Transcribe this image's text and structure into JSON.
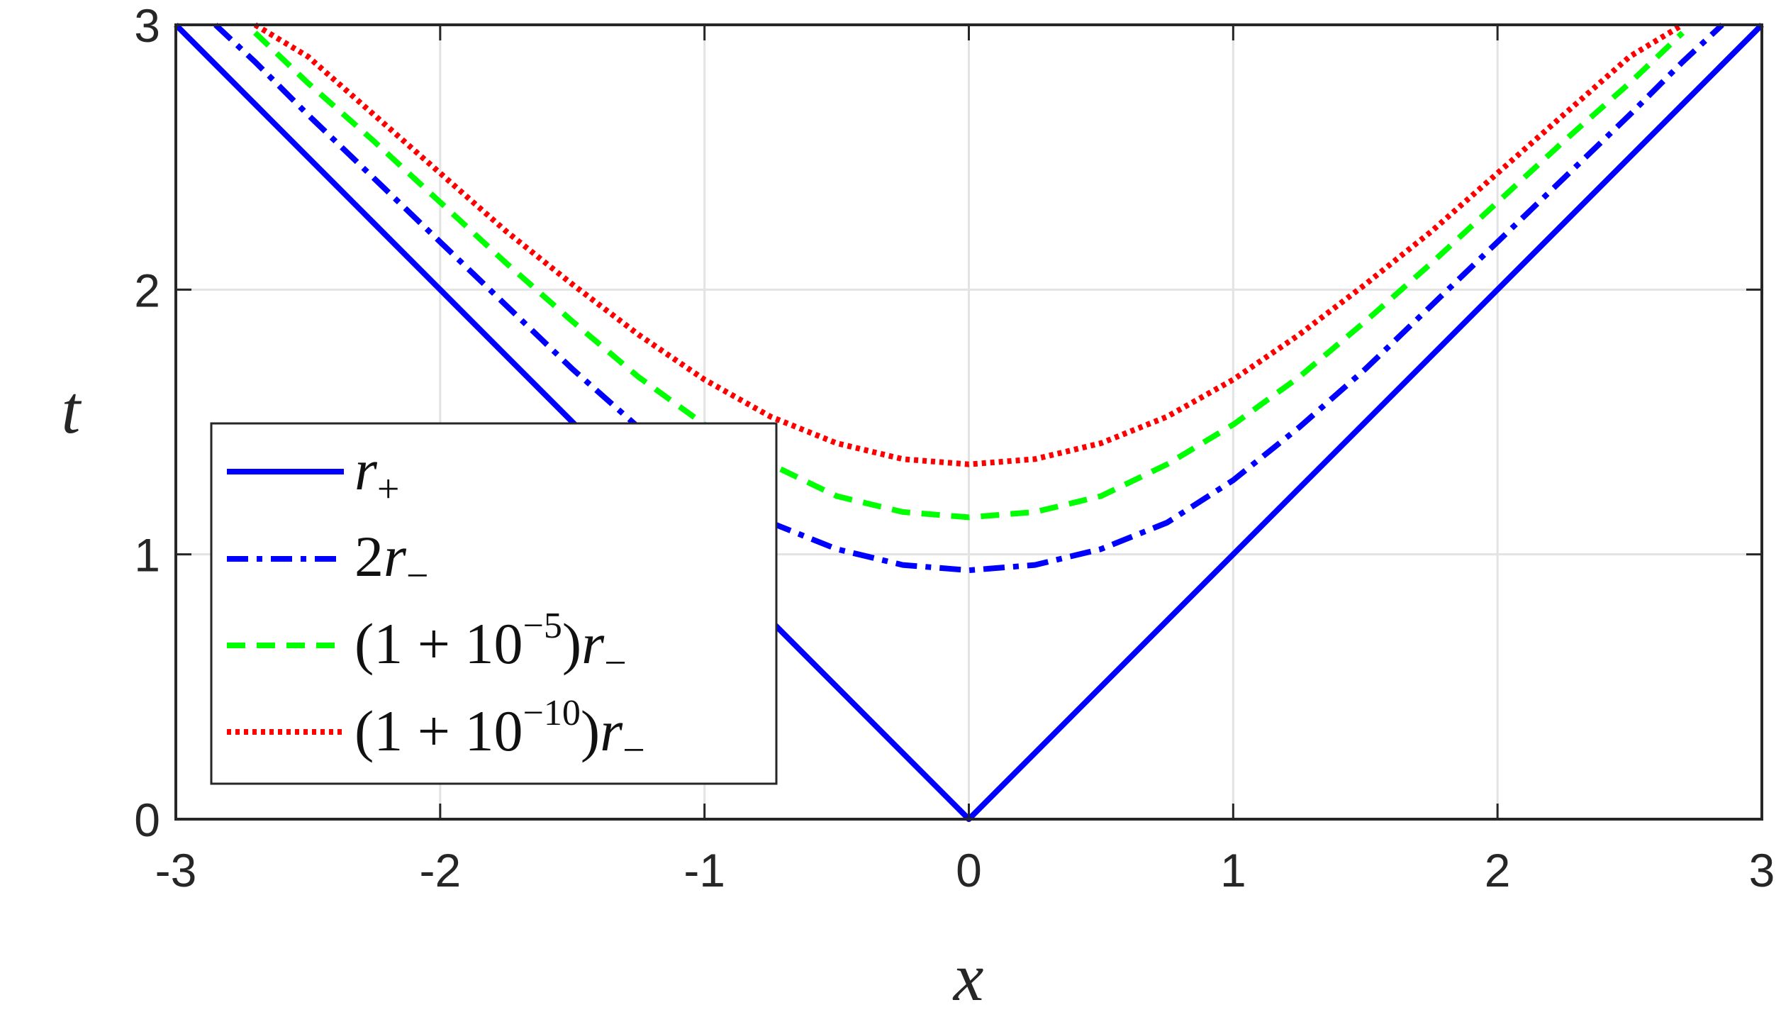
{
  "chart_data": {
    "type": "line",
    "title": "",
    "xlabel": "x",
    "ylabel": "t",
    "xlim": [
      -3,
      3
    ],
    "ylim": [
      0,
      3
    ],
    "xticks": [
      -3,
      -2,
      -1,
      0,
      1,
      2,
      3
    ],
    "yticks": [
      0,
      1,
      2,
      3
    ],
    "xtick_labels": [
      "-3",
      "-2",
      "-1",
      "0",
      "1",
      "2",
      "3"
    ],
    "ytick_labels": [
      "0",
      "1",
      "2",
      "3"
    ],
    "grid": true,
    "legend_position": "bottom-left",
    "x": [
      -3.0,
      -2.85,
      -2.7,
      -2.5,
      -2.25,
      -2.0,
      -1.75,
      -1.5,
      -1.25,
      -1.0,
      -0.75,
      -0.5,
      -0.25,
      0.0,
      0.25,
      0.5,
      0.75,
      1.0,
      1.25,
      1.5,
      1.75,
      2.0,
      2.25,
      2.5,
      2.7,
      2.85,
      3.0
    ],
    "series": [
      {
        "name": "r+",
        "color": "#0000ff",
        "style": "solid",
        "values": [
          3.0,
          2.85,
          2.7,
          2.5,
          2.25,
          2.0,
          1.75,
          1.5,
          1.25,
          1.0,
          0.75,
          0.5,
          0.25,
          0.0,
          0.25,
          0.5,
          0.75,
          1.0,
          1.25,
          1.5,
          1.75,
          2.0,
          2.25,
          2.5,
          2.7,
          2.85,
          3.0
        ]
      },
      {
        "name": "2r−",
        "color": "#0000ff",
        "style": "dashdot",
        "values": [
          null,
          3.0,
          2.86,
          2.66,
          2.42,
          2.18,
          1.94,
          1.7,
          1.48,
          1.28,
          1.12,
          1.02,
          0.96,
          0.94,
          0.96,
          1.02,
          1.12,
          1.28,
          1.48,
          1.7,
          1.94,
          2.18,
          2.42,
          2.66,
          2.86,
          3.0,
          null
        ]
      },
      {
        "name": "(1+10⁻⁵)r−",
        "color": "#00ff00",
        "style": "dashed",
        "values": [
          null,
          null,
          2.97,
          2.78,
          2.56,
          2.33,
          2.1,
          1.88,
          1.67,
          1.49,
          1.34,
          1.22,
          1.16,
          1.14,
          1.16,
          1.22,
          1.34,
          1.49,
          1.67,
          1.88,
          2.1,
          2.33,
          2.56,
          2.78,
          2.97,
          null,
          null
        ]
      },
      {
        "name": "(1+10⁻¹⁰)r−",
        "color": "#ff0000",
        "style": "dotted",
        "values": [
          null,
          null,
          3.0,
          2.88,
          2.66,
          2.44,
          2.22,
          2.02,
          1.83,
          1.66,
          1.52,
          1.42,
          1.36,
          1.34,
          1.36,
          1.42,
          1.52,
          1.66,
          1.83,
          2.02,
          2.22,
          2.44,
          2.66,
          2.88,
          3.0,
          null,
          null
        ]
      }
    ]
  },
  "legend": {
    "items": [
      {
        "main": "r",
        "sub": "+",
        "pre": "",
        "mid": "",
        "sup": ""
      },
      {
        "main": "r",
        "sub": "−",
        "pre": "2",
        "mid": "",
        "sup": ""
      },
      {
        "main": "r",
        "sub": "−",
        "pre": "(1 + 10",
        "mid": ")",
        "sup": "−5"
      },
      {
        "main": "r",
        "sub": "−",
        "pre": "(1 + 10",
        "mid": ")",
        "sup": "−10"
      }
    ]
  }
}
